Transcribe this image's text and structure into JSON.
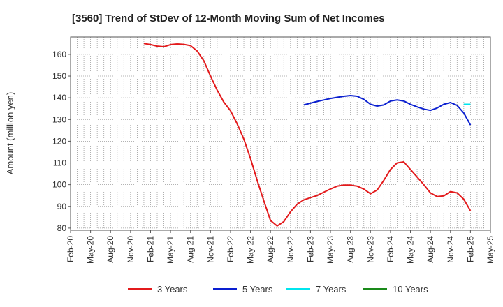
{
  "chart_data": {
    "type": "line",
    "title": "[3560]  Trend of StDev of 12-Month Moving Sum of Net Incomes",
    "xlabel": "",
    "ylabel": "Amount (million yen)",
    "ylim": [
      79,
      168
    ],
    "yticks": [
      80,
      90,
      100,
      110,
      120,
      130,
      140,
      150,
      160
    ],
    "xlim": [
      "2020-02",
      "2025-05"
    ],
    "x_tick_labels": [
      "Feb-20",
      "May-20",
      "Aug-20",
      "Nov-20",
      "Feb-21",
      "May-21",
      "Aug-21",
      "Nov-21",
      "Feb-22",
      "May-22",
      "Aug-22",
      "Nov-22",
      "Feb-23",
      "May-23",
      "Aug-23",
      "Nov-23",
      "Feb-24",
      "May-24",
      "Aug-24",
      "Nov-24",
      "Feb-25",
      "May-25"
    ],
    "grid": true,
    "legend_position": "bottom",
    "series": [
      {
        "name": "3 Years",
        "color": "#e31a1c",
        "points": [
          [
            "2021-01",
            165
          ],
          [
            "2021-02",
            164.5
          ],
          [
            "2021-03",
            163.8
          ],
          [
            "2021-04",
            163.5
          ],
          [
            "2021-05",
            164.5
          ],
          [
            "2021-06",
            164.8
          ],
          [
            "2021-07",
            164.6
          ],
          [
            "2021-08",
            164
          ],
          [
            "2021-09",
            161.5
          ],
          [
            "2021-10",
            157
          ],
          [
            "2021-11",
            150
          ],
          [
            "2021-12",
            143.5
          ],
          [
            "2022-01",
            138
          ],
          [
            "2022-02",
            134
          ],
          [
            "2022-03",
            128
          ],
          [
            "2022-04",
            121
          ],
          [
            "2022-05",
            112
          ],
          [
            "2022-06",
            102
          ],
          [
            "2022-07",
            92.5
          ],
          [
            "2022-08",
            83.5
          ],
          [
            "2022-09",
            81
          ],
          [
            "2022-10",
            83
          ],
          [
            "2022-11",
            87.5
          ],
          [
            "2022-12",
            91
          ],
          [
            "2023-01",
            93
          ],
          [
            "2023-02",
            94
          ],
          [
            "2023-03",
            95
          ],
          [
            "2023-04",
            96.5
          ],
          [
            "2023-05",
            98
          ],
          [
            "2023-06",
            99.3
          ],
          [
            "2023-07",
            99.8
          ],
          [
            "2023-08",
            99.8
          ],
          [
            "2023-09",
            99.3
          ],
          [
            "2023-10",
            98
          ],
          [
            "2023-11",
            95.8
          ],
          [
            "2023-12",
            97.5
          ],
          [
            "2024-01",
            102
          ],
          [
            "2024-02",
            107
          ],
          [
            "2024-03",
            110
          ],
          [
            "2024-04",
            110.5
          ],
          [
            "2024-05",
            107
          ],
          [
            "2024-06",
            103.5
          ],
          [
            "2024-07",
            100
          ],
          [
            "2024-08",
            96.2
          ],
          [
            "2024-09",
            94.5
          ],
          [
            "2024-10",
            94.8
          ],
          [
            "2024-11",
            96.8
          ],
          [
            "2024-12",
            96.2
          ],
          [
            "2025-01",
            93.3
          ],
          [
            "2025-02",
            88
          ]
        ]
      },
      {
        "name": "5 Years",
        "color": "#0a1fd0",
        "points": [
          [
            "2023-01",
            136.7
          ],
          [
            "2023-02",
            137.5
          ],
          [
            "2023-03",
            138.3
          ],
          [
            "2023-04",
            139
          ],
          [
            "2023-05",
            139.7
          ],
          [
            "2023-06",
            140.2
          ],
          [
            "2023-07",
            140.7
          ],
          [
            "2023-08",
            141
          ],
          [
            "2023-09",
            140.7
          ],
          [
            "2023-10",
            139.3
          ],
          [
            "2023-11",
            137
          ],
          [
            "2023-12",
            136.2
          ],
          [
            "2024-01",
            136.7
          ],
          [
            "2024-02",
            138.5
          ],
          [
            "2024-03",
            139
          ],
          [
            "2024-04",
            138.5
          ],
          [
            "2024-05",
            137
          ],
          [
            "2024-06",
            135.8
          ],
          [
            "2024-07",
            134.8
          ],
          [
            "2024-08",
            134.2
          ],
          [
            "2024-09",
            135.3
          ],
          [
            "2024-10",
            137
          ],
          [
            "2024-11",
            137.8
          ],
          [
            "2024-12",
            136.5
          ],
          [
            "2025-01",
            133
          ],
          [
            "2025-02",
            127.5
          ]
        ]
      },
      {
        "name": "7 Years",
        "color": "#00e5ee",
        "points": [
          [
            "2025-01",
            137
          ],
          [
            "2025-02",
            137
          ]
        ]
      },
      {
        "name": "10 Years",
        "color": "#1a8a1a",
        "points": []
      }
    ]
  }
}
